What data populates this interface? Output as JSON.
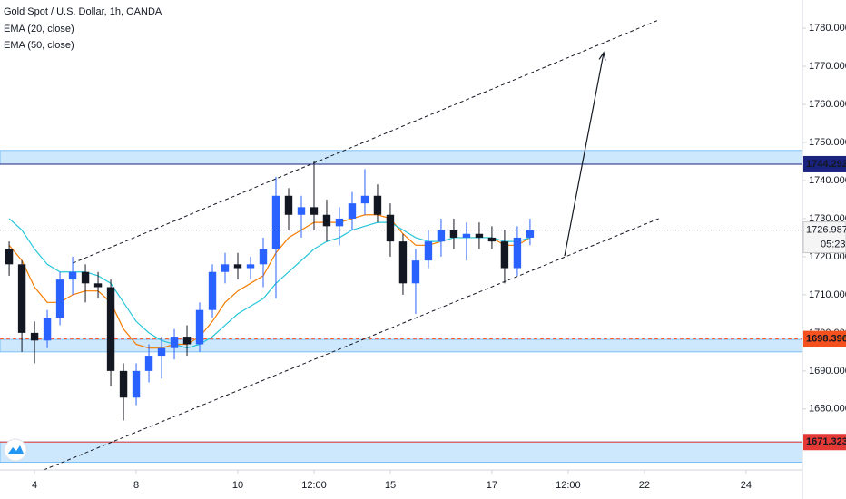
{
  "chart_data": {
    "type": "candlestick",
    "title": "Gold Spot / U.S. Dollar, 1h, OANDA",
    "up_color": "#2962ff",
    "down_color": "#131722",
    "grid": false,
    "x": [
      -0.5,
      -0.25,
      0,
      0.25,
      0.5,
      0.75,
      1,
      1.25,
      1.5,
      1.75,
      2,
      2.25,
      2.5,
      2.75,
      3,
      3.25,
      3.5,
      3.75,
      4,
      4.25,
      4.5,
      4.75,
      5,
      5.25,
      5.5,
      5.75,
      6,
      6.25,
      6.5,
      6.75,
      7,
      7.25,
      7.5,
      7.75,
      8,
      8.25,
      8.5,
      8.75,
      9,
      9.25,
      9.5,
      9.75
    ],
    "open": [
      1722,
      1718,
      1700,
      1698,
      1704,
      1714,
      1716,
      1713,
      1712,
      1690,
      1683,
      1690,
      1694,
      1696,
      1699,
      1697,
      1706,
      1716,
      1718,
      1717,
      1718,
      1722,
      1736,
      1731,
      1733,
      1731,
      1728,
      1730,
      1734,
      1736,
      1731,
      1724,
      1713,
      1719,
      1724,
      1727,
      1725,
      1726,
      1725,
      1724,
      1717,
      1725
    ],
    "high": [
      1724,
      1719,
      1703,
      1706,
      1716,
      1720,
      1718,
      1716,
      1714,
      1692,
      1692,
      1697,
      1699,
      1701,
      1702,
      1708,
      1718,
      1721,
      1721,
      1720,
      1725,
      1741,
      1738,
      1736,
      1745,
      1735,
      1733,
      1737,
      1743,
      1739,
      1734,
      1726,
      1722,
      1727,
      1730,
      1730,
      1729,
      1729,
      1728,
      1727,
      1728,
      1730
    ],
    "low": [
      1715,
      1695,
      1692,
      1696,
      1702,
      1710,
      1708,
      1709,
      1686,
      1677,
      1681,
      1687,
      1688,
      1693,
      1694,
      1695,
      1704,
      1713,
      1714,
      1714,
      1712,
      1709,
      1727,
      1725,
      1727,
      1724,
      1723,
      1727,
      1731,
      1729,
      1720,
      1710,
      1705,
      1717,
      1720,
      1722,
      1719,
      1722,
      1722,
      1713,
      1715,
      1723
    ],
    "close": [
      1718,
      1700,
      1698,
      1704,
      1714,
      1716,
      1713,
      1712,
      1690,
      1683,
      1690,
      1694,
      1696,
      1699,
      1697,
      1706,
      1716,
      1718,
      1717,
      1718,
      1722,
      1736,
      1731,
      1733,
      1731,
      1728,
      1730,
      1734,
      1736,
      1731,
      1724,
      1713,
      1719,
      1724,
      1727,
      1725,
      1726,
      1725,
      1724,
      1717,
      1725,
      1727
    ],
    "series": [
      {
        "name": "EMA (20, close)",
        "color": "#f57c00",
        "values": [
          1723,
          1719,
          1712,
          1708,
          1708,
          1710,
          1711,
          1711,
          1708,
          1701,
          1697,
          1696,
          1696,
          1697,
          1697,
          1699,
          1703,
          1708,
          1711,
          1713,
          1715,
          1721,
          1725,
          1727,
          1729,
          1729,
          1729,
          1730,
          1731,
          1731,
          1730,
          1726,
          1723,
          1723,
          1724,
          1725,
          1725,
          1725,
          1725,
          1723,
          1723,
          1725
        ]
      },
      {
        "name": "EMA (50, close)",
        "color": "#26c6da",
        "values": [
          1730,
          1727,
          1722,
          1718,
          1716,
          1716,
          1716,
          1715,
          1713,
          1708,
          1703,
          1700,
          1698,
          1697,
          1696,
          1697,
          1699,
          1702,
          1705,
          1707,
          1709,
          1713,
          1716,
          1719,
          1722,
          1724,
          1725,
          1727,
          1728,
          1729,
          1729,
          1727,
          1725,
          1724,
          1724,
          1725,
          1725,
          1725,
          1725,
          1724,
          1724,
          1725
        ]
      }
    ],
    "xlim": [
      -0.68,
      15.11
    ],
    "ylim": [
      1664.0,
      1787.4
    ],
    "xticks": [
      {
        "value": 0,
        "label": "4"
      },
      {
        "value": 2,
        "label": "8"
      },
      {
        "value": 4,
        "label": "10"
      },
      {
        "value": 5.5,
        "label": "12:00"
      },
      {
        "value": 7,
        "label": "15"
      },
      {
        "value": 9,
        "label": "17"
      },
      {
        "value": 10.5,
        "label": "12:00"
      },
      {
        "value": 12,
        "label": "22"
      },
      {
        "value": 14,
        "label": "24"
      }
    ],
    "yticks": [
      {
        "value": 1680,
        "label": "1680.000"
      },
      {
        "value": 1690,
        "label": "1690.000"
      },
      {
        "value": 1700,
        "label": "1700.000"
      },
      {
        "value": 1710,
        "label": "1710.000"
      },
      {
        "value": 1720,
        "label": "1720.000"
      },
      {
        "value": 1730,
        "label": "1730.000"
      },
      {
        "value": 1740,
        "label": "1740.000"
      },
      {
        "value": 1750,
        "label": "1750.000"
      },
      {
        "value": 1760,
        "label": "1760.000"
      },
      {
        "value": 1770,
        "label": "1770.000"
      },
      {
        "value": 1780,
        "label": "1780.000"
      }
    ],
    "zones": [
      {
        "top": 1747.9,
        "bottom": 1744.3,
        "level": 1744.292,
        "color": "#1a237e"
      },
      {
        "top": 1698.3,
        "bottom": 1695.0,
        "level": 1698.396,
        "color": "#f4511e"
      },
      {
        "top": 1671.4,
        "bottom": 1666.0,
        "level": 1671.323,
        "color": "#e53935"
      }
    ],
    "last_price": 1726.987,
    "countdown": "05:23",
    "channel": [
      {
        "x": [
          0.75,
          12.27
        ],
        "y": [
          1718.3,
          1782.1
        ]
      },
      {
        "x": [
          0.18,
          12.32
        ],
        "y": [
          1664.0,
          1730.2
        ]
      }
    ],
    "arrow": {
      "x": [
        10.43,
        11.2
      ],
      "y": [
        1720.2,
        1773.6
      ]
    }
  }
}
